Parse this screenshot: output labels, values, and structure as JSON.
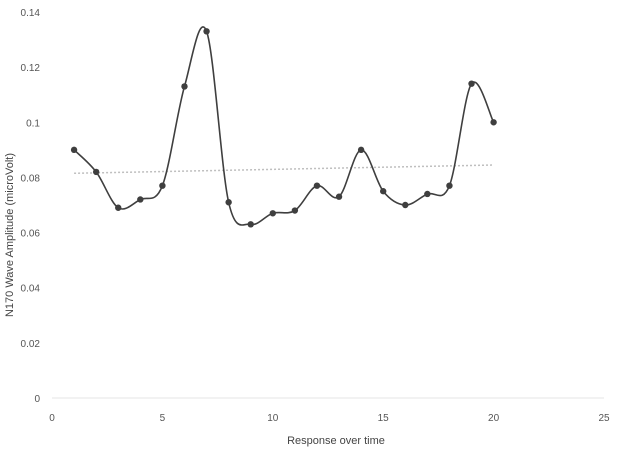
{
  "chart_data": {
    "type": "line",
    "title": "",
    "xlabel": "Response over time",
    "ylabel": "N170 Wave Amplitude (microVolt)",
    "xlim": [
      0,
      25
    ],
    "ylim": [
      0,
      0.14
    ],
    "x_ticks": [
      "0",
      "5",
      "10",
      "15",
      "20",
      "25"
    ],
    "y_ticks": [
      "0",
      "0.02",
      "0.04",
      "0.06",
      "0.08",
      "0.1",
      "0.12",
      "0.14"
    ],
    "grid": false,
    "legend": "none",
    "series": [
      {
        "x": [
          1,
          2,
          3,
          4,
          5,
          6,
          7,
          8,
          9,
          10,
          11,
          12,
          13,
          14,
          15,
          16,
          17,
          18,
          19,
          20
        ],
        "values": [
          0.09,
          0.082,
          0.069,
          0.072,
          0.077,
          0.113,
          0.133,
          0.071,
          0.063,
          0.067,
          0.068,
          0.077,
          0.073,
          0.09,
          0.075,
          0.07,
          0.074,
          0.077,
          0.114,
          0.1
        ],
        "color": "#3f3f3f",
        "smooth": true,
        "markers": "circle"
      }
    ],
    "trendline": {
      "type": "linear",
      "x": [
        1,
        20
      ],
      "values": [
        0.0815,
        0.0845
      ],
      "color": "#bfbfbf",
      "style": "dotted"
    }
  }
}
